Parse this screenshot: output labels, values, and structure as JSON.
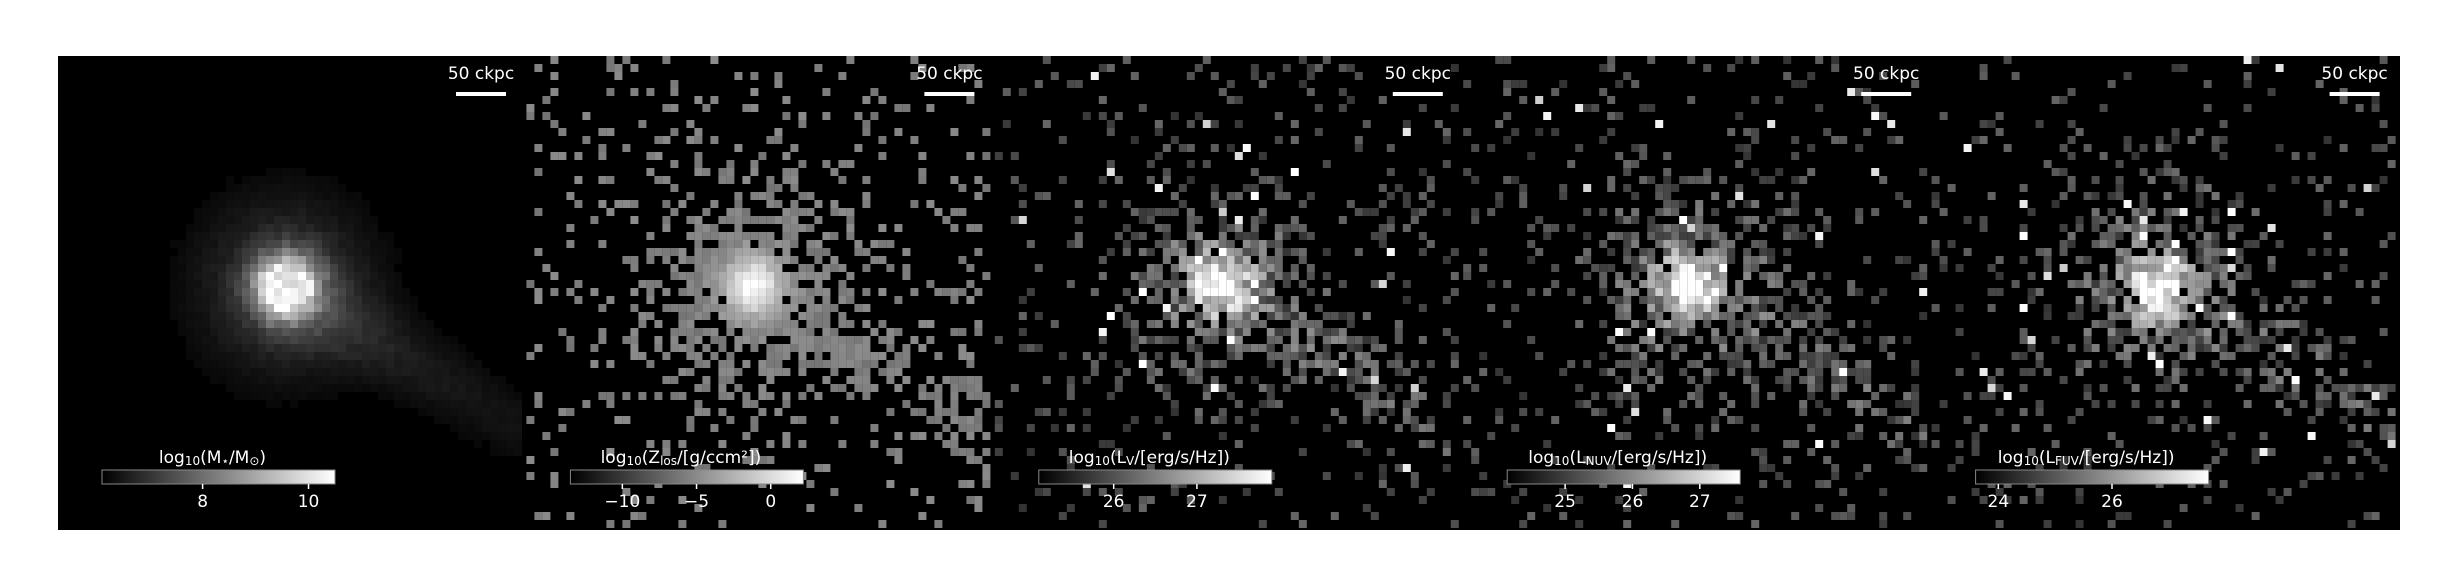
{
  "panels": [
    {
      "scale_label": "50 ckpc",
      "colorbar": {
        "label": [
          "log",
          "10",
          "(M",
          "⋆",
          "/M",
          "⊙",
          ")"
        ],
        "lim": [
          6.1,
          10.5
        ],
        "ticks": [
          8,
          10
        ]
      }
    },
    {
      "scale_label": "50 ckpc",
      "colorbar": {
        "label": [
          "log",
          "10",
          "(Z",
          "los",
          "/[g/ccm²])"
        ],
        "lim": [
          -13.5,
          2.2
        ],
        "ticks": [
          {
            "value": -10,
            "label": "−10"
          },
          {
            "value": -5,
            "label": "−5"
          },
          0
        ]
      }
    },
    {
      "scale_label": "50 ckpc",
      "colorbar": {
        "label": [
          "log",
          "10",
          "(L",
          "V",
          "/[erg/s/Hz])"
        ],
        "lim": [
          25.1,
          27.9
        ],
        "ticks": [
          26,
          27
        ]
      }
    },
    {
      "scale_label": "50 ckpc",
      "colorbar": {
        "label": [
          "log",
          "10",
          "(L",
          "NUV",
          "/[erg/s/Hz])"
        ],
        "lim": [
          24.14,
          27.6
        ],
        "ticks": [
          25,
          26,
          27
        ]
      }
    },
    {
      "scale_label": "50 ckpc",
      "colorbar": {
        "label": [
          "log",
          "10",
          "(L",
          "FUV",
          "/[erg/s/Hz])"
        ],
        "lim": [
          23.6,
          27.7
        ],
        "ticks": [
          24,
          26
        ]
      }
    }
  ]
}
